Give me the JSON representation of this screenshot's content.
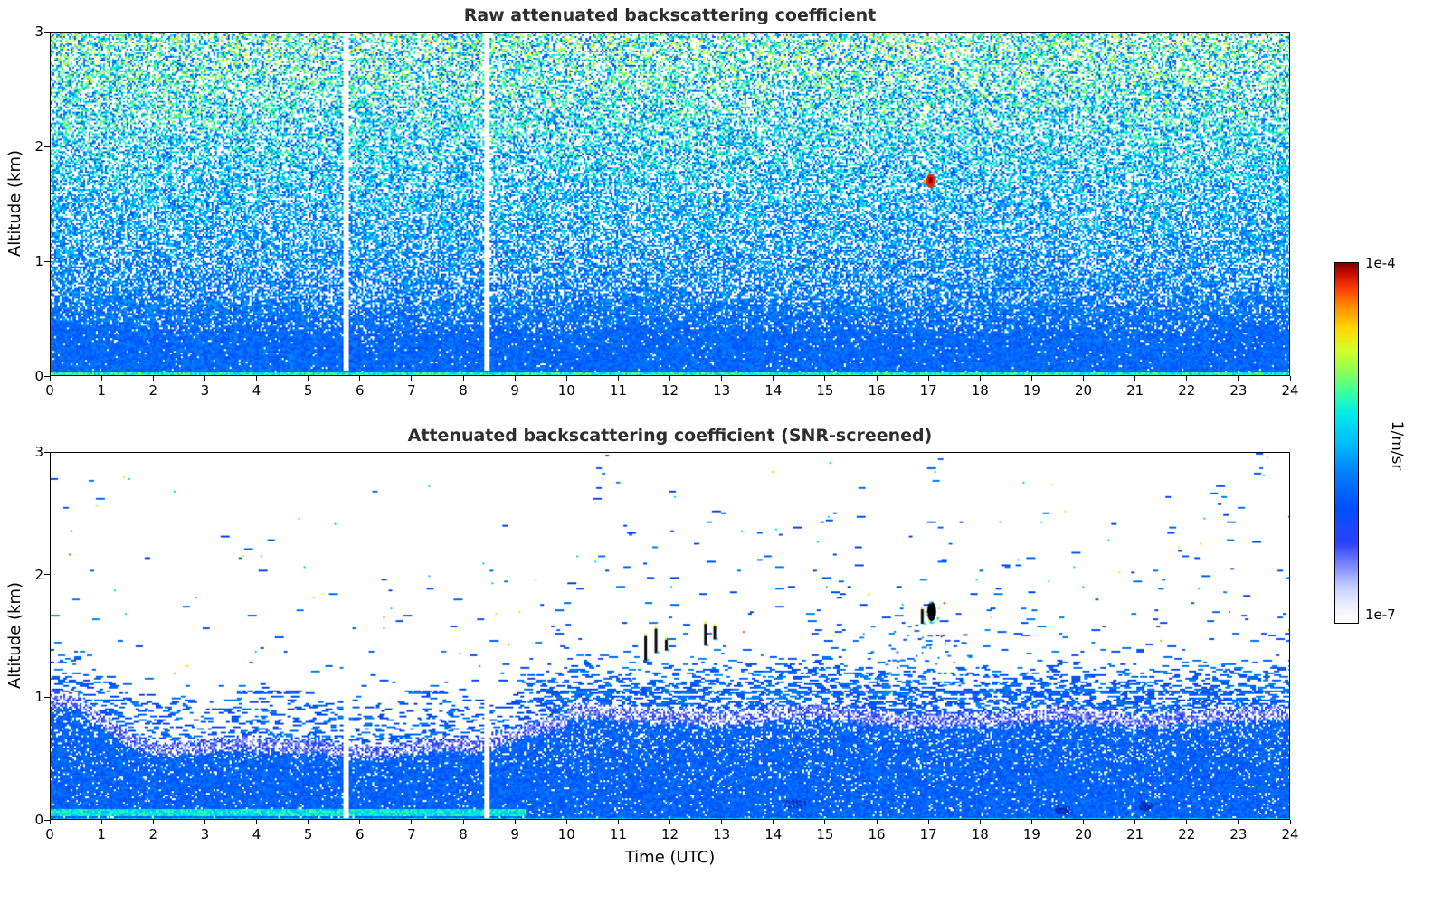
{
  "panel1": {
    "title": "Raw attenuated backscattering coefficient",
    "ylabel": "Altitude (km)"
  },
  "panel2": {
    "title": "Attenuated backscattering coefficient (SNR-screened)",
    "ylabel": "Altitude (km)",
    "xlabel": "Time (UTC)"
  },
  "colorbar": {
    "max_label": "1e-4",
    "min_label": "1e-7",
    "unit": "1/m/sr"
  },
  "chart_data": {
    "type": "heatmap",
    "x": {
      "label": "Time (UTC)",
      "range": [
        0,
        24
      ],
      "ticks": [
        0,
        1,
        2,
        3,
        4,
        5,
        6,
        7,
        8,
        9,
        10,
        11,
        12,
        13,
        14,
        15,
        16,
        17,
        18,
        19,
        20,
        21,
        22,
        23,
        24
      ]
    },
    "y": {
      "label": "Altitude (km)",
      "range": [
        0,
        3
      ],
      "ticks": [
        0,
        1,
        2,
        3
      ]
    },
    "grid": false,
    "colorbar": {
      "scale": "log",
      "min": 1e-07,
      "max": 0.0001,
      "min_label": "1e-7",
      "max_label": "1e-4",
      "unit": "1/m/sr",
      "colormap_stops": [
        [
          0.0,
          [
            255,
            255,
            255
          ]
        ],
        [
          0.05,
          [
            235,
            238,
            255
          ]
        ],
        [
          0.1,
          [
            195,
            205,
            255
          ]
        ],
        [
          0.16,
          [
            120,
            135,
            255
          ]
        ],
        [
          0.22,
          [
            45,
            65,
            255
          ]
        ],
        [
          0.32,
          [
            0,
            80,
            255
          ]
        ],
        [
          0.42,
          [
            0,
            130,
            255
          ]
        ],
        [
          0.5,
          [
            0,
            190,
            255
          ]
        ],
        [
          0.58,
          [
            0,
            235,
            235
          ]
        ],
        [
          0.64,
          [
            60,
            255,
            160
          ]
        ],
        [
          0.7,
          [
            140,
            255,
            80
          ]
        ],
        [
          0.76,
          [
            215,
            255,
            40
          ]
        ],
        [
          0.82,
          [
            255,
            215,
            0
          ]
        ],
        [
          0.88,
          [
            255,
            140,
            0
          ]
        ],
        [
          0.93,
          [
            255,
            60,
            0
          ]
        ],
        [
          0.97,
          [
            205,
            15,
            0
          ]
        ],
        [
          1.0,
          [
            125,
            0,
            0
          ]
        ]
      ]
    },
    "panels": [
      {
        "title": "Raw attenuated backscattering coefficient",
        "summary": "Raw attenuated backscatter: noise amplitude increases with altitude (cyan/green speckle above ~1.5 km over blue), dense blue boundary layer below ~0.5 km with a green surface return at 0 km, vertical white data gaps near 5.7 and 8.45 UTC, and a strong red echo near 17.05 UTC at 1.7 km.",
        "features": {
          "data_gap_times_utc": [
            5.7,
            8.45
          ],
          "surface_layer_top_km": 0.45,
          "strong_echo": {
            "time_utc": 17.05,
            "altitude_km": 1.7
          },
          "faint_echoes": [
            [
              11.6,
              1.45
            ],
            [
              12.75,
              1.5
            ]
          ]
        }
      },
      {
        "title": "Attenuated backscattering coefficient (SNR-screened)",
        "summary": "SNR-screened backscatter: valid signal confined below ~1.0 km at 0 UTC, dropping to ~0.7 km during 02-08 UTC and rising to ~0.9-1.0 km after 10 UTC; scattered echoes up to ~1.6 km between 11-13 UTC; dark cloud echoes near 17 UTC at ~1.7 km; thin dashed layer near 1.05 km; data gaps at 5.7 and 8.45 UTC.",
        "features": {
          "data_gap_times_utc": [
            5.7,
            8.45
          ],
          "mixed_layer_top_km": {
            "t00_01": 1.0,
            "t02_08": 0.7,
            "t10_24": 0.95
          },
          "dashed_layer_altitude_km": 1.05,
          "cloud_echoes": [
            {
              "time_utc": 11.52,
              "alt_km": [
                1.3,
                1.5
              ]
            },
            {
              "time_utc": 11.72,
              "alt_km": [
                1.36,
                1.56
              ]
            },
            {
              "time_utc": 11.92,
              "alt_km": [
                1.38,
                1.47
              ]
            },
            {
              "time_utc": 12.68,
              "alt_km": [
                1.42,
                1.6
              ]
            },
            {
              "time_utc": 12.86,
              "alt_km": [
                1.47,
                1.58
              ]
            },
            {
              "time_utc": 16.88,
              "alt_km": [
                1.6,
                1.72
              ]
            },
            {
              "time_utc": 17.07,
              "alt_km": [
                1.62,
                1.78
              ],
              "strong": true
            }
          ]
        }
      }
    ]
  }
}
